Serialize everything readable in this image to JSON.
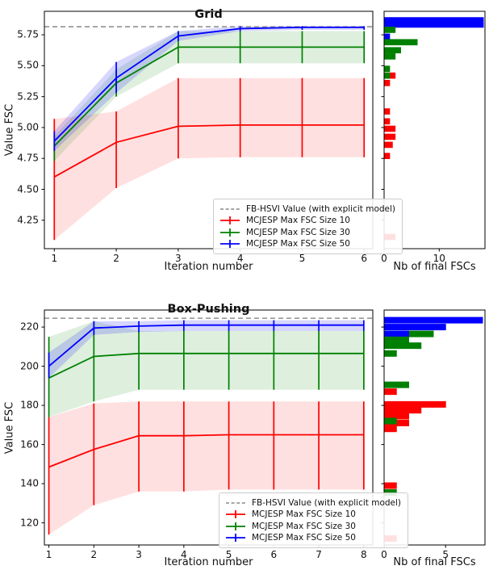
{
  "figure": {
    "background": "#ffffff"
  },
  "colors": {
    "red": "#ff0000",
    "green": "#008000",
    "blue": "#0000ff",
    "hsvi": "#999999",
    "spine": "#000000"
  },
  "legend": {
    "items": [
      {
        "label": "FB-HSVI Value (with explicit model)",
        "color": "hsvi",
        "style": "dashed"
      },
      {
        "label": "MCJESP Max FSC Size 10",
        "color": "red",
        "style": "errorbar"
      },
      {
        "label": "MCJESP Max FSC Size 30",
        "color": "green",
        "style": "errorbar"
      },
      {
        "label": "MCJESP Max FSC Size 50",
        "color": "blue",
        "style": "errorbar"
      }
    ]
  },
  "chart_data": [
    {
      "type": "line",
      "title": "Grid",
      "xlabel": "Iteration number",
      "ylabel": "Value FSC",
      "hist_xlabel": "Nb of final FSCs",
      "xlim": [
        0.84,
        6.14
      ],
      "ylim": [
        4.02,
        5.94
      ],
      "xticks": [
        "1",
        "2",
        "3",
        "4",
        "5",
        "6"
      ],
      "yticks": [
        "4.25",
        "4.50",
        "4.75",
        "5.00",
        "5.25",
        "5.50",
        "5.75"
      ],
      "hsvi_value": 5.815,
      "series": [
        {
          "name": "MCJESP Max FSC Size 10",
          "color": "red",
          "band_alpha": 0.12,
          "x": [
            1,
            2,
            3,
            4,
            5,
            6
          ],
          "y": [
            4.6,
            4.88,
            5.01,
            5.02,
            5.02,
            5.02
          ],
          "lo": [
            4.09,
            4.51,
            4.75,
            4.76,
            4.76,
            4.76
          ],
          "hi": [
            5.07,
            5.13,
            5.4,
            5.4,
            5.4,
            5.4
          ]
        },
        {
          "name": "MCJESP Max FSC Size 30",
          "color": "green",
          "band_alpha": 0.13,
          "x": [
            1,
            2,
            3,
            4,
            5,
            6
          ],
          "y": [
            4.85,
            5.36,
            5.65,
            5.65,
            5.65,
            5.65
          ],
          "lo": [
            4.73,
            5.25,
            5.52,
            5.52,
            5.52,
            5.52
          ],
          "hi": [
            4.93,
            5.47,
            5.78,
            5.78,
            5.78,
            5.78
          ]
        },
        {
          "name": "MCJESP Max FSC Size 50",
          "color": "blue",
          "band_alpha": 0.16,
          "x": [
            1,
            2,
            3,
            4,
            5,
            6
          ],
          "y": [
            4.89,
            5.4,
            5.74,
            5.8,
            5.81,
            5.81
          ],
          "lo": [
            4.81,
            5.28,
            5.7,
            5.78,
            5.79,
            5.79
          ],
          "hi": [
            4.97,
            5.53,
            5.78,
            5.82,
            5.82,
            5.82
          ]
        }
      ],
      "hist": {
        "xlim": [
          0,
          18.3
        ],
        "xticks": [
          "0",
          "10"
        ],
        "bin": 0.05,
        "bars": [
          {
            "v": 5.85,
            "n": 18,
            "c": "blue",
            "h": 0.085
          },
          {
            "v": 5.79,
            "n": 2,
            "c": "green"
          },
          {
            "v": 5.735,
            "n": 1,
            "c": "blue"
          },
          {
            "v": 5.69,
            "n": 6,
            "c": "green"
          },
          {
            "v": 5.625,
            "n": 3,
            "c": "green"
          },
          {
            "v": 5.575,
            "n": 2,
            "c": "green"
          },
          {
            "v": 5.475,
            "n": 1,
            "c": "green"
          },
          {
            "v": 5.42,
            "n": 2,
            "c": "red"
          },
          {
            "v": 5.42,
            "n": 1,
            "c": "green"
          },
          {
            "v": 5.36,
            "n": 1,
            "c": "red"
          },
          {
            "v": 5.13,
            "n": 1,
            "c": "red"
          },
          {
            "v": 5.05,
            "n": 1,
            "c": "red"
          },
          {
            "v": 4.99,
            "n": 2,
            "c": "red"
          },
          {
            "v": 4.925,
            "n": 2,
            "c": "red"
          },
          {
            "v": 4.86,
            "n": 1.5,
            "c": "red"
          },
          {
            "v": 4.77,
            "n": 1,
            "c": "red"
          },
          {
            "v": 4.115,
            "n": 2,
            "c": "red"
          }
        ]
      }
    },
    {
      "type": "line",
      "title": "Box-Pushing",
      "xlabel": "Iteration number",
      "ylabel": "Value FSC",
      "hist_xlabel": "Nb of final FSCs",
      "xlim": [
        0.9,
        8.2
      ],
      "ylim": [
        108.7,
        228.7
      ],
      "xticks": [
        "1",
        "2",
        "3",
        "4",
        "5",
        "6",
        "7",
        "8"
      ],
      "yticks": [
        "120",
        "140",
        "160",
        "180",
        "200",
        "220"
      ],
      "hsvi_value": 224.5,
      "series": [
        {
          "name": "MCJESP Max FSC Size 10",
          "color": "red",
          "band_alpha": 0.12,
          "x": [
            1,
            2,
            3,
            4,
            5,
            6,
            7,
            8
          ],
          "y": [
            148.5,
            157.5,
            164.5,
            164.5,
            165,
            165,
            165,
            165
          ],
          "lo": [
            114,
            129,
            136,
            136,
            137,
            137,
            137,
            137
          ],
          "hi": [
            174,
            181,
            182,
            182,
            182,
            182,
            182,
            182
          ]
        },
        {
          "name": "MCJESP Max FSC Size 30",
          "color": "green",
          "band_alpha": 0.13,
          "x": [
            1,
            2,
            3,
            4,
            5,
            6,
            7,
            8
          ],
          "y": [
            194,
            205,
            206.5,
            206.5,
            206.5,
            206.5,
            206.5,
            206.5
          ],
          "lo": [
            174,
            182,
            188,
            188,
            188,
            188,
            188,
            188
          ],
          "hi": [
            215,
            223,
            218,
            218,
            218,
            218,
            218,
            218
          ]
        },
        {
          "name": "MCJESP Max FSC Size 50",
          "color": "blue",
          "band_alpha": 0.16,
          "x": [
            1,
            2,
            3,
            4,
            5,
            6,
            7,
            8
          ],
          "y": [
            200,
            219.5,
            220.5,
            221,
            221,
            221,
            221,
            221
          ],
          "lo": [
            194,
            216,
            217.5,
            218,
            218,
            218,
            218,
            218
          ],
          "hi": [
            207,
            223,
            223,
            223.5,
            223.5,
            223.5,
            223.5,
            223.5
          ]
        }
      ],
      "hist": {
        "xlim": [
          0,
          8.2
        ],
        "xticks": [
          "0",
          "5"
        ],
        "bin": 3.3,
        "bars": [
          {
            "v": 223.5,
            "n": 8,
            "c": "blue"
          },
          {
            "v": 220,
            "n": 5,
            "c": "blue"
          },
          {
            "v": 216.5,
            "n": 4,
            "c": "green"
          },
          {
            "v": 216.5,
            "n": 2,
            "c": "blue"
          },
          {
            "v": 213.5,
            "n": 2,
            "c": "green"
          },
          {
            "v": 210.5,
            "n": 3,
            "c": "green"
          },
          {
            "v": 206.5,
            "n": 1,
            "c": "green"
          },
          {
            "v": 190.5,
            "n": 2,
            "c": "green"
          },
          {
            "v": 187,
            "n": 1,
            "c": "red"
          },
          {
            "v": 180.5,
            "n": 5,
            "c": "red"
          },
          {
            "v": 177.5,
            "n": 3,
            "c": "red"
          },
          {
            "v": 174.5,
            "n": 2,
            "c": "red"
          },
          {
            "v": 171,
            "n": 2,
            "c": "red"
          },
          {
            "v": 172,
            "n": 1,
            "c": "green"
          },
          {
            "v": 168,
            "n": 1,
            "c": "red"
          },
          {
            "v": 139,
            "n": 1,
            "c": "red"
          },
          {
            "v": 135.5,
            "n": 1,
            "c": "green"
          },
          {
            "v": 112,
            "n": 1,
            "c": "red"
          }
        ]
      }
    }
  ]
}
